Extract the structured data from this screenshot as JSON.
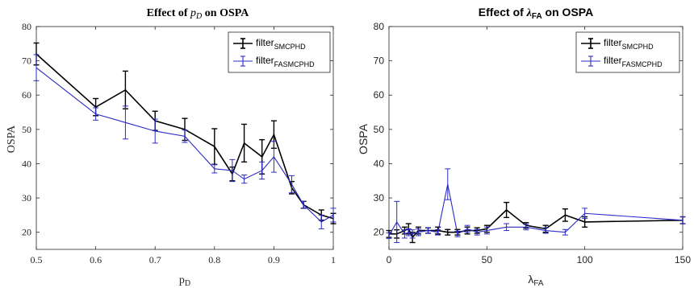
{
  "chart_data": [
    {
      "type": "line",
      "title_prefix": "Effect of ",
      "title_symbol": "p",
      "title_symbol_sub": "D",
      "title_suffix": " on OSPA",
      "xlabel_main": "p",
      "xlabel_sub": "D",
      "ylabel": "OSPA",
      "xlim": [
        0.5,
        1.0
      ],
      "ylim": [
        15,
        80
      ],
      "xticks": [
        "0.5",
        "0.6",
        "0.7",
        "0.8",
        "0.9",
        "1"
      ],
      "xtick_values": [
        0.5,
        0.6,
        0.7,
        0.8,
        0.9,
        1.0
      ],
      "yticks": [
        "20",
        "30",
        "40",
        "50",
        "60",
        "70",
        "80"
      ],
      "ytick_values": [
        20,
        30,
        40,
        50,
        60,
        70,
        80
      ],
      "legend_position": "top-right",
      "series": [
        {
          "name_main": "filter",
          "name_sub": "SMCPHD",
          "color": "#000000",
          "x": [
            0.5,
            0.6,
            0.65,
            0.7,
            0.75,
            0.8,
            0.83,
            0.85,
            0.88,
            0.9,
            0.93,
            0.95,
            0.98,
            1.0
          ],
          "y": [
            72,
            56.5,
            61.5,
            52.5,
            50,
            45,
            37,
            46,
            42,
            48.5,
            33,
            28,
            25,
            24
          ],
          "err": [
            3.2,
            2.5,
            5.5,
            2.8,
            3.2,
            5.2,
            2.0,
            5.5,
            5.0,
            4.0,
            1.8,
            1.0,
            1.5,
            1.5
          ]
        },
        {
          "name_main": "filter",
          "name_sub": "FASMCPHD",
          "color": "#2a2ac8",
          "x": [
            0.5,
            0.6,
            0.65,
            0.7,
            0.75,
            0.8,
            0.83,
            0.85,
            0.88,
            0.9,
            0.93,
            0.95,
            0.98,
            1.0
          ],
          "y": [
            68,
            54.5,
            52,
            49.5,
            48,
            38.5,
            38,
            35.5,
            38,
            42,
            34,
            28,
            23,
            25
          ],
          "err": [
            3.8,
            1.8,
            4.8,
            3.5,
            1.8,
            1.2,
            3.2,
            1.2,
            2.5,
            4.5,
            2.5,
            1.0,
            2.0,
            2.0
          ]
        }
      ]
    },
    {
      "type": "line",
      "title_prefix": "Effect of ",
      "title_symbol": "λ",
      "title_symbol_sub": "FA",
      "title_suffix": " on OSPA",
      "xlabel_main": "λ",
      "xlabel_sub": "FA",
      "ylabel": "OSPA",
      "xlim": [
        0,
        150
      ],
      "ylim": [
        15,
        80
      ],
      "xticks": [
        "0",
        "50",
        "100",
        "150"
      ],
      "xtick_values": [
        0,
        50,
        100,
        150
      ],
      "yticks": [
        "20",
        "30",
        "40",
        "50",
        "60",
        "70",
        "80"
      ],
      "ytick_values": [
        20,
        30,
        40,
        50,
        60,
        70,
        80
      ],
      "legend_position": "top-right",
      "series": [
        {
          "name_main": "filter",
          "name_sub": "SMCPHD",
          "color": "#000000",
          "x": [
            0,
            4,
            8,
            10,
            12,
            15,
            20,
            25,
            30,
            35,
            40,
            45,
            50,
            60,
            70,
            80,
            90,
            100,
            150
          ],
          "y": [
            19.5,
            19.5,
            20.5,
            21,
            18.5,
            20.5,
            20.5,
            20.5,
            20,
            20,
            20.5,
            20.5,
            21,
            26.5,
            22,
            21,
            25,
            23,
            23.5
          ],
          "err": [
            1.0,
            1.2,
            1.0,
            1.5,
            1.5,
            1.0,
            0.8,
            1.0,
            0.8,
            0.8,
            1.0,
            0.8,
            1.0,
            2.2,
            0.8,
            1.0,
            1.8,
            1.5,
            1.0
          ]
        },
        {
          "name_main": "filter",
          "name_sub": "FASMCPHD",
          "color": "#2a2ac8",
          "x": [
            0,
            4,
            8,
            10,
            12,
            15,
            20,
            25,
            30,
            35,
            40,
            45,
            50,
            60,
            70,
            80,
            90,
            100,
            150
          ],
          "y": [
            19,
            23,
            19.5,
            20,
            19.5,
            20,
            20.5,
            20,
            34,
            19.5,
            21,
            20,
            20.5,
            21.5,
            21.5,
            20.5,
            20,
            25.5,
            23.5
          ],
          "err": [
            0.8,
            6.0,
            1.2,
            1.0,
            1.2,
            1.0,
            0.8,
            0.8,
            4.5,
            0.8,
            1.0,
            0.8,
            1.0,
            1.0,
            0.8,
            0.8,
            0.8,
            1.5,
            1.0
          ]
        }
      ]
    }
  ]
}
